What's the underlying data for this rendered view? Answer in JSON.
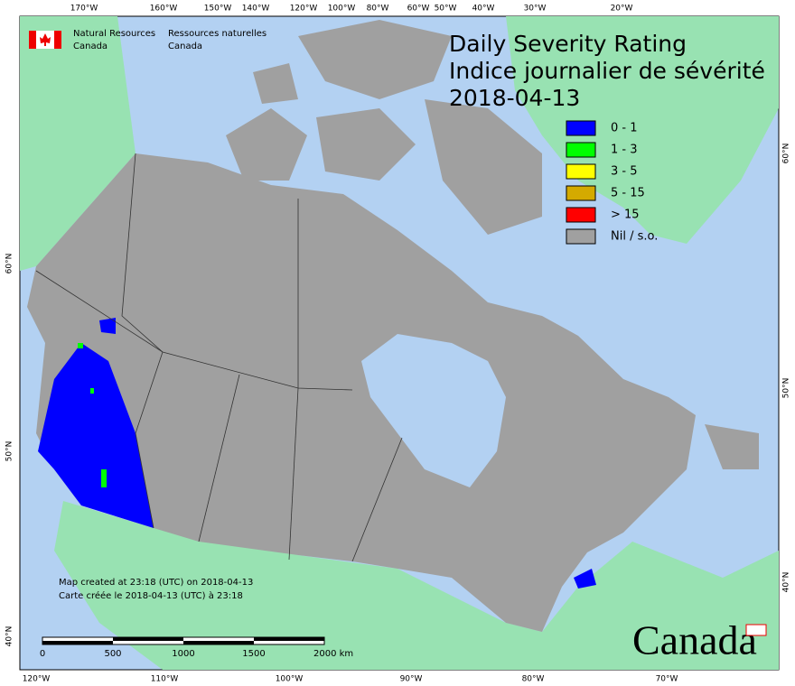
{
  "logo": {
    "en_line1": "Natural Resources",
    "en_line2": "Canada",
    "fr_line1": "Ressources naturelles",
    "fr_line2": "Canada"
  },
  "title": {
    "line1": "Daily Severity Rating",
    "line2": "Indice journalier de sévérité",
    "date": "2018-04-13"
  },
  "legend": [
    {
      "label": "0 - 1",
      "color": "#0000ff"
    },
    {
      "label": "1 - 3",
      "color": "#00ff00"
    },
    {
      "label": "3 - 5",
      "color": "#ffff00"
    },
    {
      "label": "5 - 15",
      "color": "#d4aa00"
    },
    {
      "label": "> 15",
      "color": "#ff0000"
    },
    {
      "label": "Nil / s.o.",
      "color": "#a0a0a0"
    }
  ],
  "top_labels": [
    "170°W",
    "160°W",
    "150°W",
    "140°W",
    "120°W",
    "100°W",
    "80°W",
    "60°W",
    "50°W",
    "40°W",
    "30°W",
    "20°W"
  ],
  "bottom_labels": [
    "120°W",
    "110°W",
    "100°W",
    "90°W",
    "80°W",
    "70°W"
  ],
  "left_labels": [
    "60°N",
    "50°N",
    "40°N"
  ],
  "right_labels": [
    "60°N",
    "50°N",
    "40°N"
  ],
  "note": {
    "line1": "Map created at 23:18 (UTC) on 2018-04-13",
    "line2": "Carte créée le 2018-04-13 (UTC) à 23:18"
  },
  "scale_labels": [
    "0",
    "500",
    "1000",
    "1500",
    "2000 km"
  ],
  "wordmark": "Canada"
}
